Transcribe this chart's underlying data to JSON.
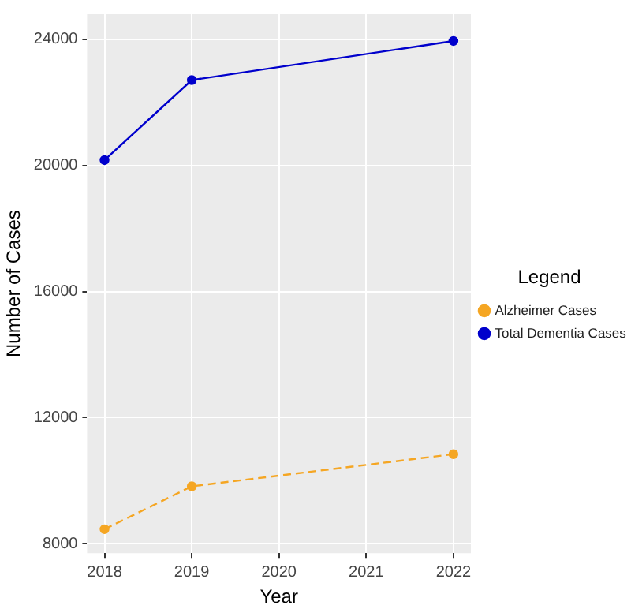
{
  "chart_data": {
    "type": "line",
    "xlabel": "Year",
    "ylabel": "Number of Cases",
    "legend_title": "Legend",
    "x": [
      2018,
      2019,
      2022
    ],
    "series": [
      {
        "name": "Alzheimer Cases",
        "color": "#f5a623",
        "values": [
          8460,
          9820,
          10840
        ],
        "line_style": "dashed"
      },
      {
        "name": "Total Dementia Cases",
        "color": "#0000cc",
        "values": [
          20170,
          22710,
          23950
        ],
        "line_style": "solid"
      }
    ],
    "xlim": [
      2017.8,
      2022.2
    ],
    "xticks": [
      2018,
      2019,
      2020,
      2021,
      2022
    ],
    "ylim": [
      7700,
      24800
    ],
    "yticks": [
      8000,
      12000,
      16000,
      20000,
      24000
    ],
    "grid": true,
    "legend": "right",
    "marker": "circle"
  }
}
